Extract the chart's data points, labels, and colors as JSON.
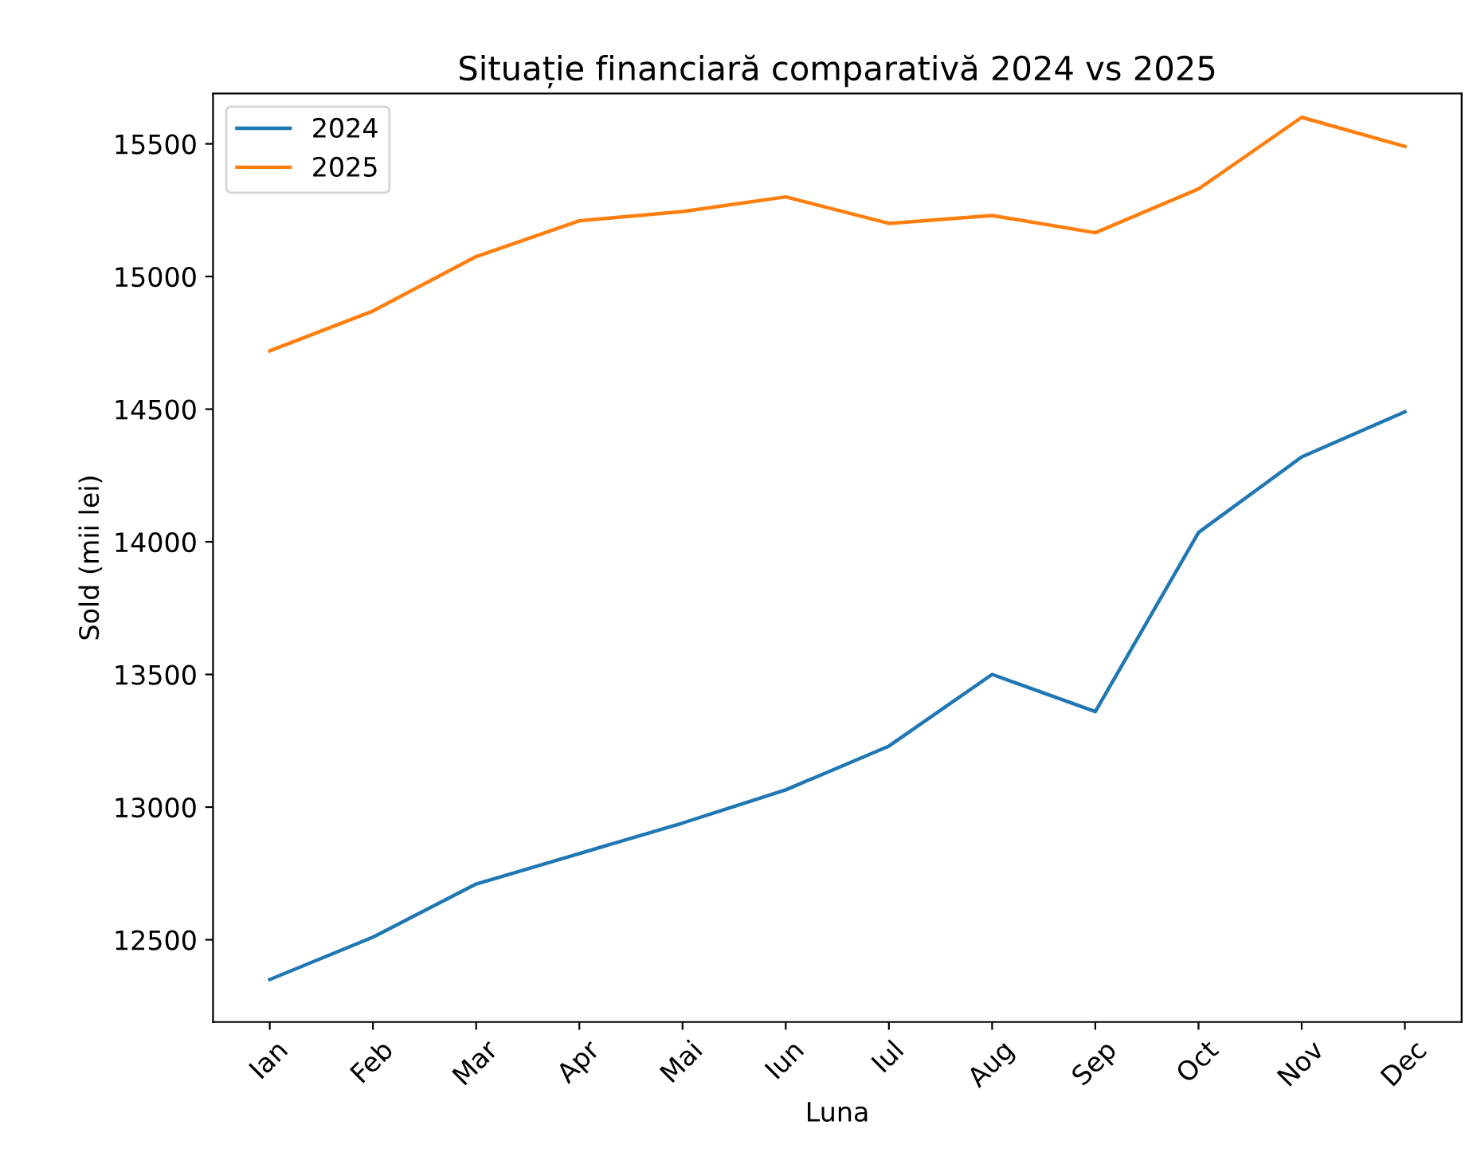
{
  "chart_data": {
    "type": "line",
    "title": "Situație financiară comparativă 2024 vs 2025",
    "xlabel": "Luna",
    "ylabel": "Sold (mii lei)",
    "categories": [
      "Ian",
      "Feb",
      "Mar",
      "Apr",
      "Mai",
      "Iun",
      "Iul",
      "Aug",
      "Sep",
      "Oct",
      "Nov",
      "Dec"
    ],
    "series": [
      {
        "name": "2024",
        "color": "#1f77b4",
        "values": [
          12350,
          12510,
          12710,
          12825,
          12940,
          13065,
          13230,
          13500,
          13360,
          14035,
          14320,
          14490
        ]
      },
      {
        "name": "2025",
        "color": "#ff7f0e",
        "values": [
          14720,
          14870,
          15075,
          15210,
          15245,
          15300,
          15200,
          15230,
          15165,
          15330,
          15600,
          15490
        ]
      }
    ],
    "ylim": [
      12190,
      15690
    ],
    "yticks": [
      12500,
      13000,
      13500,
      14000,
      14500,
      15000,
      15500
    ],
    "grid": false,
    "legend": "top left",
    "line_style": "solid"
  }
}
